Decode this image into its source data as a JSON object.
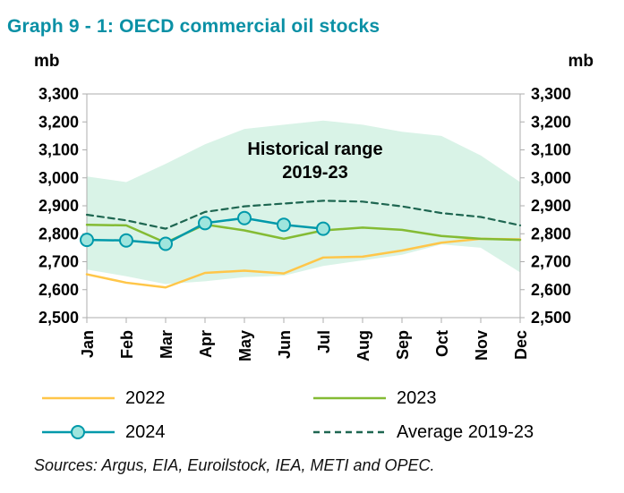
{
  "title": "Graph 9 - 1: OECD commercial oil stocks",
  "y_unit_left": "mb",
  "y_unit_right": "mb",
  "sources": "Sources: Argus, EIA, Euroilstock, IEA, METI and OPEC.",
  "colors": {
    "title": "#0a90a5",
    "band_fill": "#d9f3e7",
    "series_2022": "#ffc649",
    "series_2023": "#84bb34",
    "series_2024": "#0099aa",
    "series_2024_marker_fill": "#9fe5dd",
    "series_average": "#1e6651",
    "plot_border": "#adadad",
    "axis_text": "#000000"
  },
  "legend": [
    {
      "id": "2022",
      "label": "2022",
      "swatch": "line",
      "color": "#ffc649"
    },
    {
      "id": "2023",
      "label": "2023",
      "swatch": "line",
      "color": "#84bb34"
    },
    {
      "id": "2024",
      "label": "2024",
      "swatch": "line-marker",
      "color": "#0099aa",
      "marker_fill": "#9fe5dd"
    },
    {
      "id": "average-2019-23",
      "label": "Average 2019-23",
      "swatch": "dashed-line",
      "color": "#1e6651"
    }
  ],
  "chart_data": {
    "type": "line",
    "title": "OECD commercial oil stocks",
    "ylabel": "mb",
    "categories": [
      "Jan",
      "Feb",
      "Mar",
      "Apr",
      "May",
      "Jun",
      "Jul",
      "Aug",
      "Sep",
      "Oct",
      "Nov",
      "Dec"
    ],
    "ylim": [
      2500,
      3300
    ],
    "ytick_step": 100,
    "yticks": [
      {
        "label": "3,300",
        "value": 3300
      },
      {
        "label": "3,200",
        "value": 3200
      },
      {
        "label": "3,100",
        "value": 3100
      },
      {
        "label": "3,000",
        "value": 3000
      },
      {
        "label": "2,900",
        "value": 2900
      },
      {
        "label": "2,800",
        "value": 2800
      },
      {
        "label": "2,700",
        "value": 2700
      },
      {
        "label": "2,600",
        "value": 2600
      },
      {
        "label": "2,500",
        "value": 2500
      }
    ],
    "annotation": {
      "lines": [
        "Historical range",
        "2019-23"
      ]
    },
    "band": {
      "name": "Historical range 2019-23",
      "upper": [
        3005,
        2985,
        3050,
        3120,
        3175,
        3190,
        3205,
        3190,
        3165,
        3150,
        3080,
        2985
      ],
      "lower": [
        2672,
        2648,
        2620,
        2630,
        2645,
        2650,
        2685,
        2705,
        2725,
        2762,
        2750,
        2662
      ]
    },
    "series": [
      {
        "id": "2022",
        "name": "2022",
        "style": "solid",
        "values": [
          2655,
          2625,
          2608,
          2660,
          2668,
          2658,
          2715,
          2718,
          2740,
          2768,
          2782,
          2780
        ]
      },
      {
        "id": "2023",
        "name": "2023",
        "style": "solid",
        "values": [
          2832,
          2830,
          2768,
          2833,
          2812,
          2782,
          2812,
          2822,
          2814,
          2792,
          2782,
          2778
        ]
      },
      {
        "id": "2024",
        "name": "2024",
        "style": "marker",
        "values": [
          2778,
          2776,
          2764,
          2838,
          2856,
          2832,
          2818,
          null,
          null,
          null,
          null,
          null
        ]
      },
      {
        "id": "average-2019-23",
        "name": "Average 2019-23",
        "style": "dashed",
        "values": [
          2868,
          2848,
          2818,
          2878,
          2898,
          2908,
          2918,
          2915,
          2898,
          2874,
          2860,
          2830
        ]
      }
    ],
    "legend_position": "bottom",
    "grid": false
  }
}
